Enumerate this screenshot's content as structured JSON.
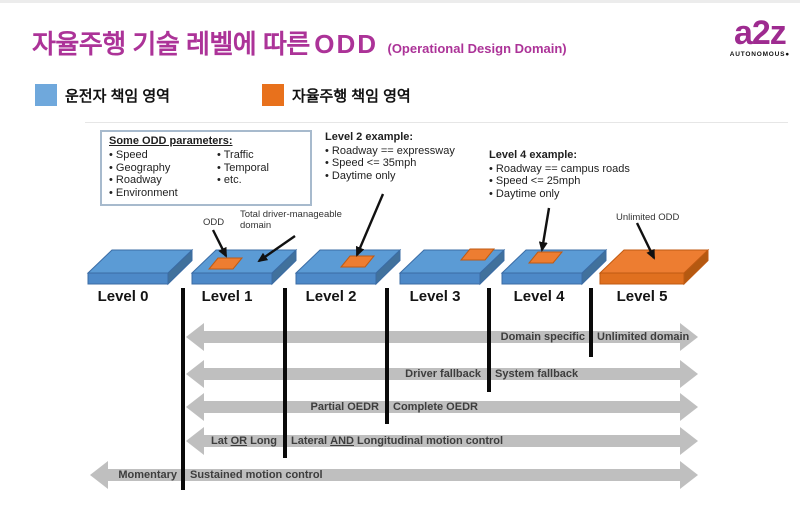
{
  "title": {
    "main": "자율주행 기술 레벨에 따른",
    "odd": "ODD",
    "sub": "(Operational Design Domain)"
  },
  "logo": {
    "text": "a2z",
    "subtext": "AUTONOMOUS●"
  },
  "legend": [
    {
      "label": "운전자 책임 영역",
      "color": "#6fa8dc"
    },
    {
      "label": "자율주행 책임 영역",
      "color": "#e8711c"
    }
  ],
  "odd_box": {
    "title": "Some ODD parameters:",
    "col1": [
      "Speed",
      "Geography",
      "Roadway",
      "Environment"
    ],
    "col2": [
      "Traffic",
      "Temporal",
      "etc."
    ]
  },
  "level2_example": {
    "title": "Level 2 example:",
    "items": [
      "Roadway == expressway",
      "Speed <= 35mph",
      "Daytime only"
    ]
  },
  "level4_example": {
    "title": "Level 4 example:",
    "items": [
      "Roadway == campus roads",
      "Speed <= 25mph",
      "Daytime only"
    ]
  },
  "annotations": {
    "odd": "ODD",
    "total_domain": "Total driver-manageable domain",
    "unlimited_odd": "Unlimited ODD"
  },
  "levels": [
    {
      "label": "Level 0"
    },
    {
      "label": "Level 1"
    },
    {
      "label": "Level 2"
    },
    {
      "label": "Level 3"
    },
    {
      "label": "Level 4"
    },
    {
      "label": "Level 5"
    }
  ],
  "spectrums": [
    {
      "left": "Domain specific",
      "right": "Unlimited domain"
    },
    {
      "left": "Driver fallback",
      "right": "System fallback"
    },
    {
      "left": "Partial OEDR",
      "right": "Complete OEDR"
    },
    {
      "left": {
        "pre": "Lat ",
        "em": "OR",
        "post": " Long"
      },
      "right": {
        "pre": "Lateral ",
        "em": "AND",
        "post": " Longitudinal motion control"
      }
    },
    {
      "left": "Momentary",
      "right": "Sustained motion control"
    }
  ],
  "colors": {
    "accent_magenta": "#ac3398",
    "box_blue": "#5b9bd5",
    "box_orange": "#ed7d31",
    "arrow_gray": "#bfbfbf"
  }
}
